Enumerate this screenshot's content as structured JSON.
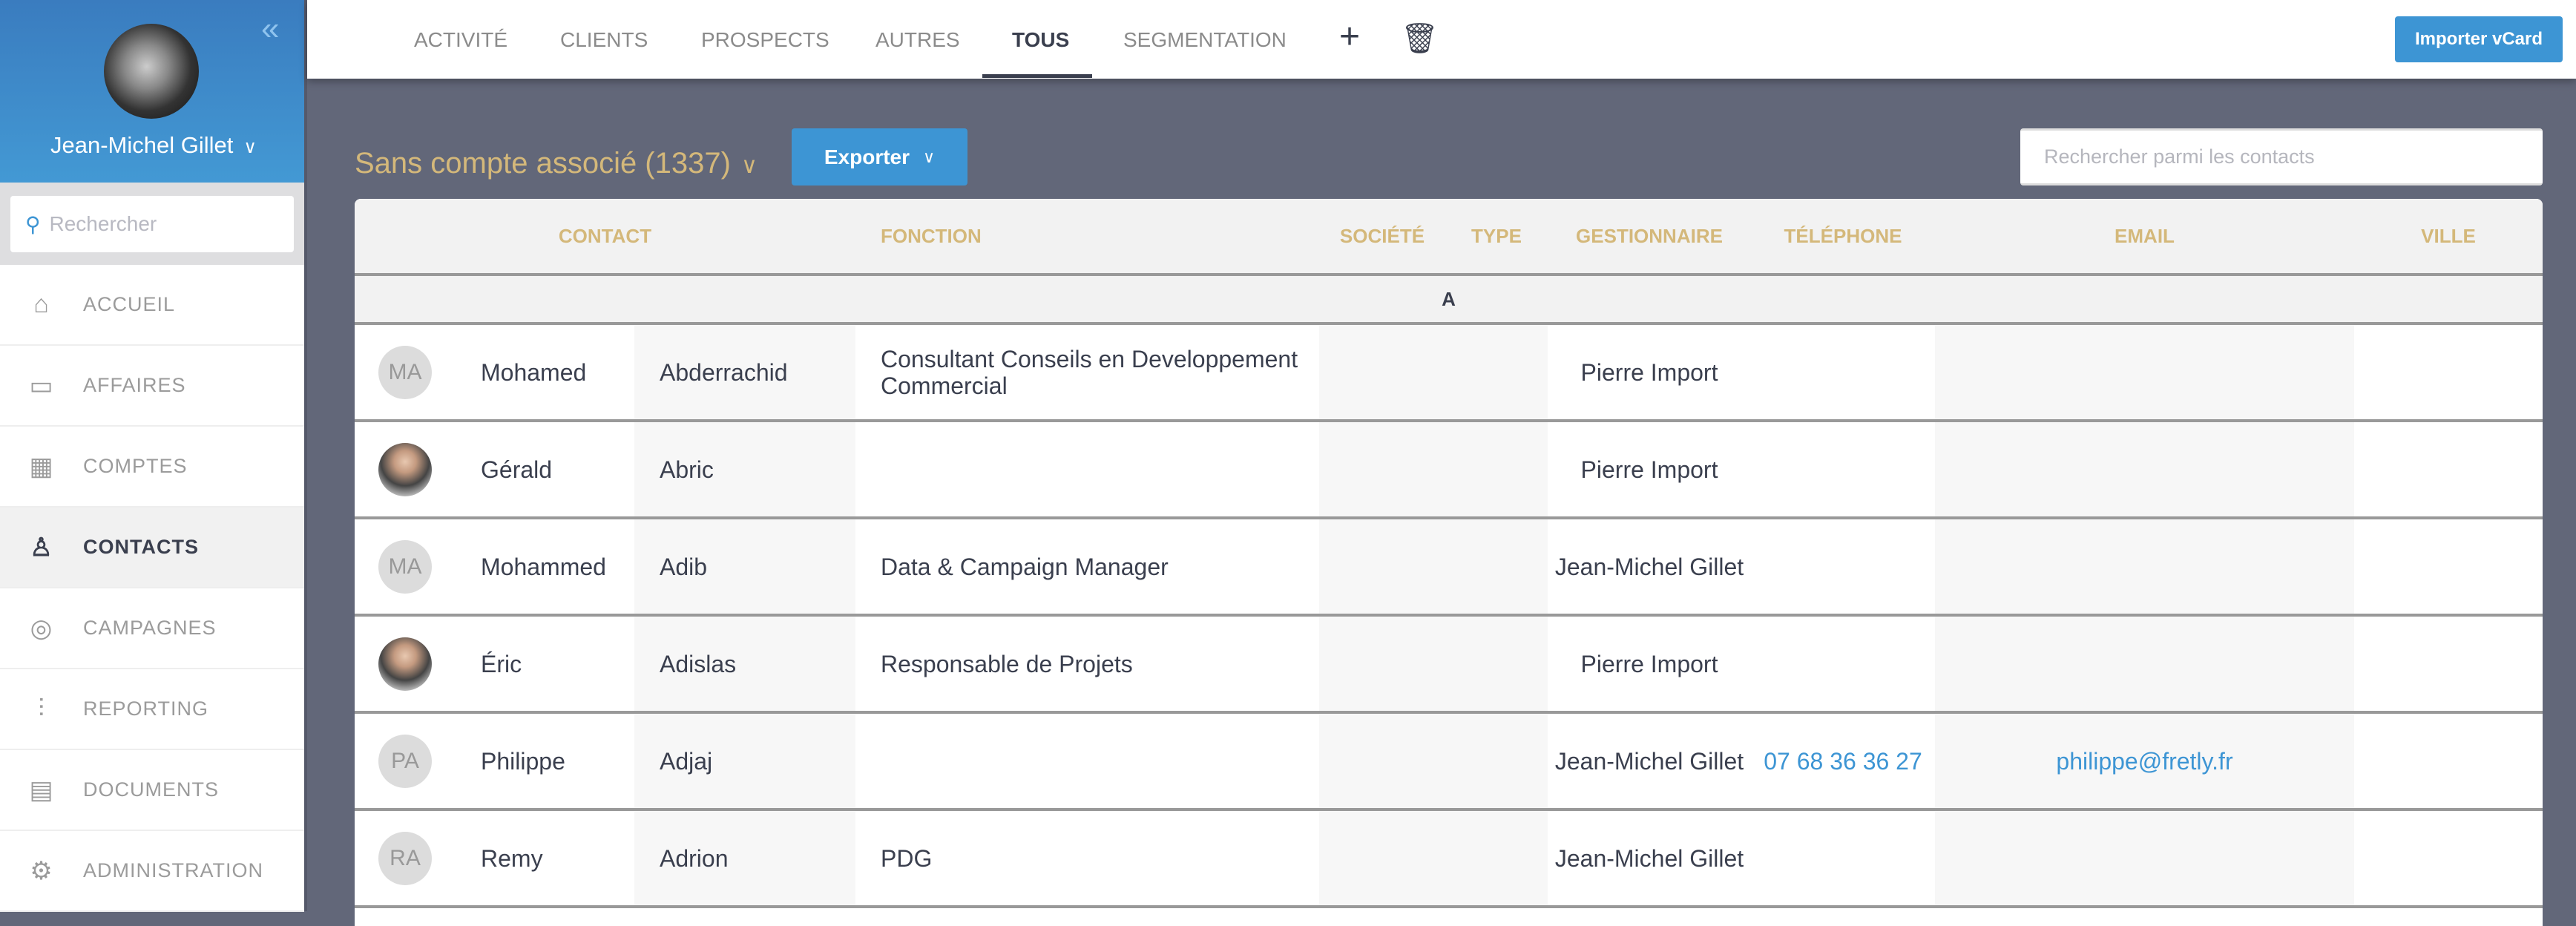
{
  "user": {
    "name": "Jean-Michel Gillet"
  },
  "sidebar": {
    "search_placeholder": "Rechercher",
    "items": [
      {
        "label": "ACCUEIL",
        "icon": "home-icon"
      },
      {
        "label": "AFFAIRES",
        "icon": "briefcase-icon"
      },
      {
        "label": "COMPTES",
        "icon": "building-icon"
      },
      {
        "label": "CONTACTS",
        "icon": "user-icon",
        "active": true
      },
      {
        "label": "CAMPAGNES",
        "icon": "target-icon"
      },
      {
        "label": "REPORTING",
        "icon": "chart-icon"
      },
      {
        "label": "DOCUMENTS",
        "icon": "document-icon"
      },
      {
        "label": "ADMINISTRATION",
        "icon": "gear-icon"
      }
    ]
  },
  "tabs": [
    "ACTIVITÉ",
    "CLIENTS",
    "PROSPECTS",
    "AUTRES",
    "TOUS",
    "SEGMENTATION"
  ],
  "active_tab": "TOUS",
  "toolbar": {
    "import_label": "Importer vCard",
    "export_label": "Exporter",
    "search_placeholder": "Rechercher parmi les contacts"
  },
  "list": {
    "title": "Sans compte associé (1337)"
  },
  "table": {
    "headers": {
      "contact": "CONTACT",
      "fonction": "FONCTION",
      "societe": "SOCIÉTÉ",
      "type": "TYPE",
      "gestionnaire": "GESTIONNAIRE",
      "telephone": "TÉLÉPHONE",
      "email": "EMAIL",
      "ville": "VILLE"
    },
    "group": "A",
    "rows": [
      {
        "initials": "MA",
        "photo": false,
        "first": "Mohamed",
        "last": "Abderrachid",
        "fonction": "Consultant Conseils en Developpement Commercial",
        "societe": "",
        "type": "",
        "gestionnaire": "Pierre Import",
        "telephone": "",
        "email": "",
        "ville": ""
      },
      {
        "initials": "",
        "photo": true,
        "first": "Gérald",
        "last": "Abric",
        "fonction": "",
        "societe": "",
        "type": "",
        "gestionnaire": "Pierre Import",
        "telephone": "",
        "email": "",
        "ville": ""
      },
      {
        "initials": "MA",
        "photo": false,
        "first": "Mohammed",
        "last": "Adib",
        "fonction": "Data & Campaign Manager",
        "societe": "",
        "type": "",
        "gestionnaire": "Jean-Michel Gillet",
        "telephone": "",
        "email": "",
        "ville": ""
      },
      {
        "initials": "",
        "photo": true,
        "first": "Éric",
        "last": "Adislas",
        "fonction": "Responsable de Projets",
        "societe": "",
        "type": "",
        "gestionnaire": "Pierre Import",
        "telephone": "",
        "email": "",
        "ville": ""
      },
      {
        "initials": "PA",
        "photo": false,
        "first": "Philippe",
        "last": "Adjaj",
        "fonction": "",
        "societe": "",
        "type": "",
        "gestionnaire": "Jean-Michel Gillet",
        "telephone": "07 68 36 36 27",
        "email": "philippe@fretly.fr",
        "ville": ""
      },
      {
        "initials": "RA",
        "photo": false,
        "first": "Remy",
        "last": "Adrion",
        "fonction": "PDG",
        "societe": "",
        "type": "",
        "gestionnaire": "Jean-Michel Gillet",
        "telephone": "",
        "email": "",
        "ville": ""
      }
    ]
  },
  "colors": {
    "accent": "#3d95d4",
    "gold": "#d4b87a",
    "background": "#626779"
  }
}
